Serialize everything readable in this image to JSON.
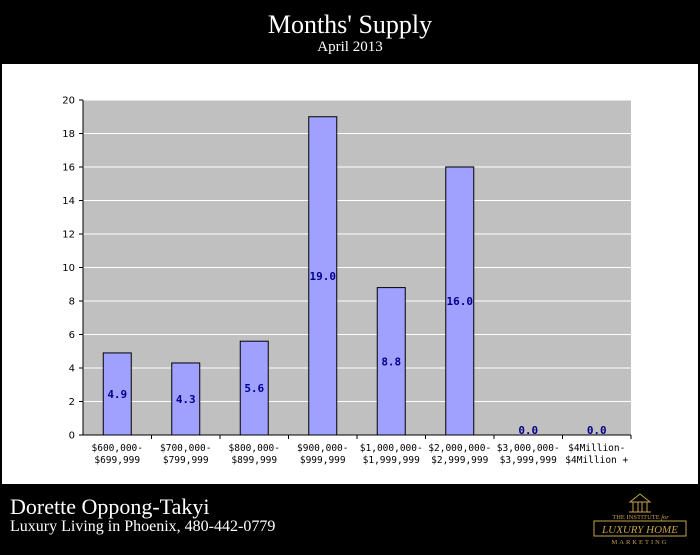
{
  "header": {
    "title": "Months' Supply",
    "subtitle": "April 2013"
  },
  "footer": {
    "agent_name": "Dorette Oppong-Takyi",
    "tagline": "Luxury Living in Phoenix, 480-442-0779",
    "logo": {
      "line1": "THE INSTITUTE",
      "line1_suffix": "for",
      "line2": "LUXURY HOME",
      "line3": "MARKETING"
    }
  },
  "colors": {
    "bar_fill": "#a0a0ff",
    "plot_background": "#c0c0c0",
    "data_label": "#00008b",
    "page_background": "#000000",
    "logo_gold": "#c8a24a"
  },
  "chart_data": {
    "type": "bar",
    "title": "Months' Supply",
    "subtitle": "April 2013",
    "categories": [
      [
        "$600,000-",
        "$699,999"
      ],
      [
        "$700,000-",
        "$799,999"
      ],
      [
        "$800,000-",
        "$899,999"
      ],
      [
        "$900,000-",
        "$999,999"
      ],
      [
        "$1,000,000-",
        "$1,999,999"
      ],
      [
        "$2,000,000-",
        "$2,999,999"
      ],
      [
        "$3,000,000-",
        "$3,999,999"
      ],
      [
        "$4Million-",
        "$4Million +"
      ]
    ],
    "values": [
      4.9,
      4.3,
      5.6,
      19.0,
      8.8,
      16.0,
      0.0,
      0.0
    ],
    "value_labels": [
      "4.9",
      "4.3",
      "5.6",
      "19.0",
      "8.8",
      "16.0",
      "0.0",
      "0.0"
    ],
    "ylim": [
      0,
      20
    ],
    "yticks": [
      0,
      2,
      4,
      6,
      8,
      10,
      12,
      14,
      16,
      18,
      20
    ],
    "grid": true,
    "legend": "none"
  }
}
